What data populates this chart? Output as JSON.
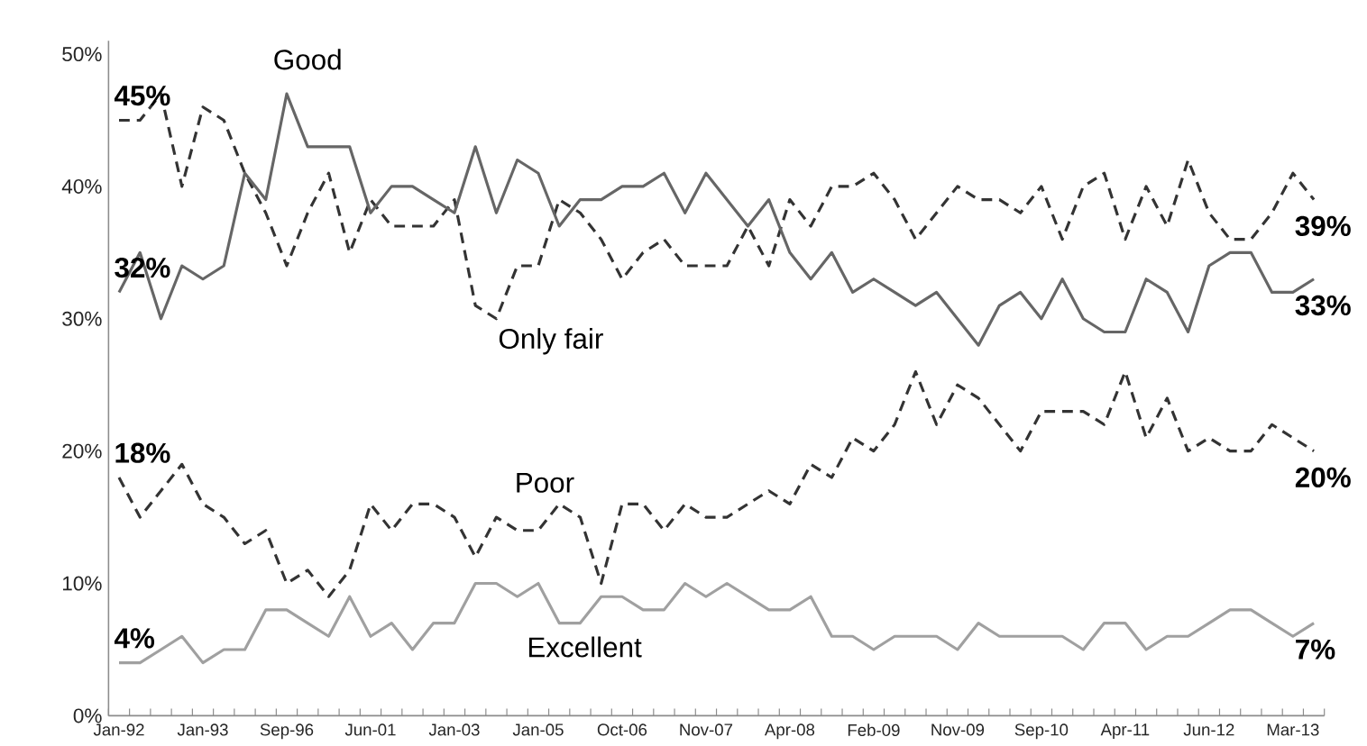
{
  "chart_data": {
    "type": "line",
    "categories": [
      "Jan-92",
      null,
      null,
      null,
      "Jan-93",
      null,
      null,
      null,
      "Sep-96",
      null,
      null,
      null,
      "Jun-01",
      null,
      null,
      null,
      "Jan-03",
      null,
      null,
      null,
      "Jan-05",
      null,
      null,
      null,
      "Oct-06",
      null,
      null,
      null,
      "Nov-07",
      null,
      null,
      null,
      "Apr-08",
      null,
      null,
      null,
      "Feb-09",
      null,
      null,
      null,
      "Nov-09",
      null,
      null,
      null,
      "Sep-10",
      null,
      null,
      null,
      "Apr-11",
      null,
      null,
      null,
      "Jun-12",
      null,
      null,
      null,
      "Mar-13",
      null
    ],
    "ylim": [
      0,
      51
    ],
    "yticks": [
      {
        "value": 0,
        "label": "0%"
      },
      {
        "value": 10,
        "label": "10%"
      },
      {
        "value": 20,
        "label": "20%"
      },
      {
        "value": 30,
        "label": "30%"
      },
      {
        "value": 40,
        "label": "40%"
      },
      {
        "value": 50,
        "label": "50%"
      }
    ],
    "grid": false,
    "series": [
      {
        "name": "Only fair",
        "color": "#333333",
        "line_style": "dashed",
        "values": [
          45,
          45,
          47,
          40,
          46,
          45,
          41,
          38,
          34,
          38,
          41,
          35,
          39,
          37,
          37,
          37,
          39,
          31,
          30,
          34,
          34,
          39,
          38,
          36,
          33,
          35,
          36,
          34,
          34,
          34,
          37,
          34,
          39,
          37,
          40,
          40,
          41,
          39,
          36,
          38,
          40,
          39,
          39,
          38,
          40,
          36,
          40,
          41,
          36,
          40,
          37,
          42,
          38,
          36,
          36,
          38,
          41,
          39
        ],
        "value_labels": [
          "45%",
          null,
          null,
          null,
          null,
          null,
          null,
          null,
          null,
          null,
          null,
          null,
          null,
          null,
          null,
          null,
          null,
          null,
          null,
          null,
          null,
          null,
          null,
          null,
          null,
          null,
          null,
          null,
          null,
          null,
          null,
          null,
          null,
          null,
          null,
          null,
          null,
          null,
          null,
          null,
          null,
          null,
          null,
          null,
          null,
          null,
          null,
          null,
          null,
          null,
          null,
          null,
          null,
          null,
          null,
          null,
          null,
          "39%"
        ]
      },
      {
        "name": "Good",
        "color": "#666666",
        "line_style": "solid",
        "values": [
          32,
          35,
          30,
          34,
          33,
          34,
          41,
          39,
          47,
          43,
          43,
          43,
          38,
          40,
          40,
          39,
          38,
          43,
          38,
          42,
          41,
          37,
          39,
          39,
          40,
          40,
          41,
          38,
          41,
          39,
          37,
          39,
          35,
          33,
          35,
          32,
          33,
          32,
          31,
          32,
          30,
          28,
          31,
          32,
          30,
          33,
          30,
          29,
          29,
          33,
          32,
          29,
          34,
          35,
          35,
          32,
          32,
          33
        ],
        "value_labels": [
          "32%",
          null,
          null,
          null,
          null,
          null,
          null,
          null,
          null,
          null,
          null,
          null,
          null,
          null,
          null,
          null,
          null,
          null,
          null,
          null,
          null,
          null,
          null,
          null,
          null,
          null,
          null,
          null,
          null,
          null,
          null,
          null,
          null,
          null,
          null,
          null,
          null,
          null,
          null,
          null,
          null,
          null,
          null,
          null,
          null,
          null,
          null,
          null,
          null,
          null,
          null,
          null,
          null,
          null,
          null,
          null,
          null,
          "33%"
        ]
      },
      {
        "name": "Poor",
        "color": "#333333",
        "line_style": "dashed",
        "values": [
          18,
          15,
          17,
          19,
          16,
          15,
          13,
          14,
          10,
          11,
          9,
          11,
          16,
          14,
          16,
          16,
          15,
          12,
          15,
          14,
          14,
          16,
          15,
          10,
          16,
          16,
          14,
          16,
          15,
          15,
          16,
          17,
          16,
          19,
          18,
          21,
          20,
          22,
          26,
          22,
          25,
          24,
          22,
          20,
          23,
          23,
          23,
          22,
          26,
          21,
          24,
          20,
          21,
          20,
          20,
          22,
          21,
          20
        ],
        "value_labels": [
          "18%",
          null,
          null,
          null,
          null,
          null,
          null,
          null,
          null,
          null,
          null,
          null,
          null,
          null,
          null,
          null,
          null,
          null,
          null,
          null,
          null,
          null,
          null,
          null,
          null,
          null,
          null,
          null,
          null,
          null,
          null,
          null,
          null,
          null,
          null,
          null,
          null,
          null,
          null,
          null,
          null,
          null,
          null,
          null,
          null,
          null,
          null,
          null,
          null,
          null,
          null,
          null,
          null,
          null,
          null,
          null,
          null,
          "20%"
        ]
      },
      {
        "name": "Excellent",
        "color": "#a0a0a0",
        "line_style": "solid",
        "values": [
          4,
          4,
          5,
          6,
          4,
          5,
          5,
          8,
          8,
          7,
          6,
          9,
          6,
          7,
          5,
          7,
          7,
          10,
          10,
          9,
          10,
          7,
          7,
          9,
          9,
          8,
          8,
          10,
          9,
          10,
          9,
          8,
          8,
          9,
          6,
          6,
          5,
          6,
          6,
          6,
          5,
          7,
          6,
          6,
          6,
          6,
          5,
          7,
          7,
          5,
          6,
          6,
          7,
          8,
          8,
          7,
          6,
          7
        ],
        "value_labels": [
          "4%",
          null,
          null,
          null,
          null,
          null,
          null,
          null,
          null,
          null,
          null,
          null,
          null,
          null,
          null,
          null,
          null,
          null,
          null,
          null,
          null,
          null,
          null,
          null,
          null,
          null,
          null,
          null,
          null,
          null,
          null,
          null,
          null,
          null,
          null,
          null,
          null,
          null,
          null,
          null,
          null,
          null,
          null,
          null,
          null,
          null,
          null,
          null,
          null,
          null,
          null,
          null,
          null,
          null,
          null,
          null,
          null,
          "7%"
        ]
      }
    ]
  }
}
